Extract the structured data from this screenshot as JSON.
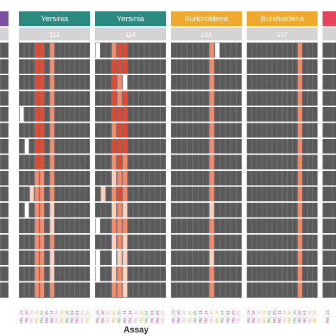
{
  "chart_data": {
    "type": "heatmap",
    "xlabel": "Assay",
    "colors": {
      "background": "#6e6e6e",
      "panel_bg": "#ffffff",
      "empty": "#5a5a5a",
      "id_strip": "#d4d4d4",
      "levels": [
        "#5a5a5a",
        "#ffffff",
        "#fcd0bf",
        "#f48a6a",
        "#e34a33"
      ],
      "tick_palette": [
        "#a04ec2",
        "#e0448c",
        "#f4a2c4",
        "#f0b73c",
        "#4caf50"
      ]
    },
    "row_count": 16,
    "panels": [
      {
        "organism": "",
        "id": "",
        "header_color": "#7b4fa0",
        "cols": [],
        "cells": []
      },
      {
        "organism": "Yersinia",
        "id": "113",
        "header_color": "#2a8a7f",
        "cols": [
          "PRC_23",
          "PRC_28",
          "PRC_20",
          "PRC_30",
          "PRC_02",
          "PRC_05",
          "PRC_11",
          "PRC_14",
          "PRC_18",
          "PRC_26",
          "PRC_04",
          "PRC_01",
          "PRC_09",
          "PRC_07"
        ],
        "cells": [
          [
            0,
            0,
            0,
            4,
            4,
            0,
            3,
            0,
            0,
            0,
            0,
            0,
            0,
            0
          ],
          [
            0,
            0,
            0,
            4,
            4,
            0,
            3,
            0,
            0,
            0,
            0,
            0,
            0,
            0
          ],
          [
            0,
            0,
            0,
            4,
            4,
            0,
            3,
            0,
            0,
            0,
            0,
            0,
            0,
            0
          ],
          [
            0,
            0,
            0,
            4,
            4,
            0,
            3,
            0,
            0,
            0,
            0,
            0,
            0,
            0
          ],
          [
            1,
            0,
            0,
            4,
            4,
            0,
            3,
            0,
            0,
            0,
            0,
            0,
            0,
            0
          ],
          [
            0,
            0,
            0,
            4,
            4,
            0,
            3,
            0,
            0,
            0,
            0,
            0,
            0,
            0
          ],
          [
            0,
            1,
            0,
            4,
            4,
            0,
            3,
            0,
            0,
            0,
            0,
            0,
            0,
            0
          ],
          [
            0,
            0,
            0,
            4,
            4,
            0,
            3,
            0,
            0,
            0,
            0,
            0,
            0,
            0
          ],
          [
            0,
            0,
            0,
            3,
            3,
            0,
            3,
            0,
            0,
            0,
            0,
            0,
            0,
            0
          ],
          [
            0,
            0,
            2,
            3,
            3,
            0,
            3,
            0,
            0,
            0,
            0,
            0,
            0,
            0
          ],
          [
            0,
            1,
            0,
            3,
            3,
            0,
            2,
            0,
            0,
            0,
            0,
            0,
            0,
            0
          ],
          [
            0,
            0,
            0,
            3,
            3,
            0,
            2,
            0,
            0,
            0,
            0,
            0,
            0,
            0
          ],
          [
            0,
            0,
            0,
            3,
            3,
            0,
            3,
            0,
            0,
            0,
            0,
            0,
            0,
            0
          ],
          [
            0,
            0,
            0,
            3,
            3,
            0,
            2,
            0,
            0,
            0,
            0,
            0,
            0,
            0
          ],
          [
            0,
            0,
            0,
            3,
            3,
            0,
            2,
            0,
            0,
            0,
            0,
            0,
            0,
            0
          ],
          [
            0,
            0,
            0,
            3,
            3,
            0,
            3,
            0,
            0,
            0,
            0,
            0,
            0,
            0
          ]
        ]
      },
      {
        "organism": "Yersinia",
        "id": "114",
        "header_color": "#2a8a7f",
        "cols": [
          "PRC_28",
          "PRC_20",
          "PRC_30",
          "PRC_02",
          "PRC_05",
          "PRC_11",
          "PRC_14",
          "PRC_18",
          "PRC_26",
          "PRC_04",
          "PRC_01",
          "PRC_09",
          "PRC_07"
        ],
        "cells": [
          [
            1,
            0,
            0,
            3,
            4,
            4,
            0,
            0,
            0,
            0,
            0,
            0,
            0
          ],
          [
            0,
            0,
            0,
            4,
            4,
            4,
            0,
            0,
            0,
            0,
            0,
            0,
            0
          ],
          [
            0,
            0,
            0,
            4,
            3,
            1,
            0,
            0,
            0,
            0,
            0,
            0,
            0
          ],
          [
            0,
            0,
            0,
            4,
            3,
            4,
            0,
            0,
            0,
            0,
            0,
            0,
            0
          ],
          [
            0,
            0,
            0,
            4,
            4,
            4,
            0,
            0,
            0,
            0,
            0,
            0,
            0
          ],
          [
            0,
            0,
            0,
            3,
            4,
            4,
            0,
            0,
            0,
            0,
            0,
            0,
            0
          ],
          [
            0,
            0,
            0,
            4,
            4,
            4,
            0,
            0,
            0,
            0,
            0,
            0,
            0
          ],
          [
            0,
            0,
            0,
            3,
            4,
            3,
            0,
            0,
            0,
            0,
            0,
            0,
            0
          ],
          [
            0,
            0,
            0,
            2,
            3,
            3,
            0,
            0,
            0,
            0,
            0,
            0,
            0
          ],
          [
            0,
            2,
            0,
            3,
            4,
            3,
            0,
            0,
            0,
            0,
            0,
            0,
            0
          ],
          [
            0,
            0,
            0,
            2,
            3,
            2,
            0,
            0,
            0,
            0,
            0,
            0,
            0
          ],
          [
            1,
            0,
            0,
            3,
            3,
            3,
            0,
            0,
            0,
            0,
            0,
            0,
            0
          ],
          [
            0,
            0,
            0,
            2,
            3,
            2,
            0,
            0,
            0,
            0,
            0,
            0,
            0
          ],
          [
            1,
            0,
            0,
            1,
            2,
            2,
            0,
            0,
            0,
            0,
            0,
            0,
            0
          ],
          [
            1,
            0,
            0,
            2,
            3,
            2,
            0,
            0,
            0,
            0,
            0,
            0,
            0
          ],
          [
            0,
            0,
            0,
            3,
            3,
            2,
            0,
            0,
            0,
            0,
            0,
            0,
            0
          ]
        ]
      },
      {
        "organism": "Burkholderia",
        "id": "164",
        "header_color": "#f0a92c",
        "cols": [
          "PRC_23",
          "PRC_20",
          "PRC_30",
          "PRC_02",
          "PRC_05",
          "PRC_11",
          "PRC_14",
          "PRC_18",
          "PRC_26",
          "PRC_04",
          "PRC_01",
          "PRC_09",
          "PRC_07"
        ],
        "cells": [
          [
            0,
            0,
            0,
            0,
            0,
            0,
            0,
            3,
            1,
            0,
            0,
            0,
            0
          ],
          [
            0,
            0,
            0,
            0,
            0,
            0,
            0,
            3,
            0,
            0,
            0,
            0,
            0
          ],
          [
            0,
            0,
            0,
            0,
            0,
            0,
            0,
            3,
            0,
            0,
            0,
            0,
            0
          ],
          [
            0,
            0,
            0,
            0,
            0,
            0,
            0,
            3,
            0,
            0,
            0,
            0,
            0
          ],
          [
            0,
            0,
            0,
            0,
            0,
            0,
            0,
            3,
            0,
            0,
            0,
            0,
            0
          ],
          [
            0,
            0,
            0,
            0,
            0,
            0,
            0,
            3,
            0,
            0,
            0,
            0,
            0
          ],
          [
            0,
            0,
            0,
            0,
            0,
            0,
            0,
            3,
            0,
            0,
            0,
            0,
            0
          ],
          [
            0,
            0,
            0,
            0,
            0,
            0,
            0,
            3,
            0,
            0,
            0,
            0,
            0
          ],
          [
            0,
            0,
            0,
            0,
            0,
            0,
            0,
            3,
            0,
            0,
            0,
            0,
            0
          ],
          [
            0,
            0,
            0,
            0,
            0,
            0,
            0,
            3,
            0,
            0,
            0,
            0,
            0
          ],
          [
            0,
            0,
            0,
            0,
            0,
            0,
            0,
            2,
            0,
            0,
            0,
            0,
            0
          ],
          [
            0,
            0,
            0,
            0,
            0,
            0,
            0,
            3,
            0,
            0,
            0,
            0,
            0
          ],
          [
            0,
            0,
            0,
            0,
            0,
            0,
            0,
            3,
            0,
            0,
            0,
            0,
            0
          ],
          [
            0,
            0,
            0,
            0,
            0,
            0,
            0,
            2,
            0,
            0,
            0,
            0,
            0
          ],
          [
            0,
            0,
            0,
            0,
            0,
            0,
            0,
            3,
            0,
            0,
            0,
            0,
            0
          ],
          [
            0,
            0,
            0,
            0,
            0,
            0,
            0,
            3,
            0,
            0,
            0,
            0,
            0
          ]
        ]
      },
      {
        "organism": "Burkholderia",
        "id": "197",
        "header_color": "#f0a92c",
        "cols": [
          "PRC_23",
          "PRC_28",
          "PRC_20",
          "PRC_30",
          "PRC_02",
          "PRC_05",
          "PRC_11",
          "PRC_14",
          "PRC_18",
          "PRC_26",
          "PRC_04",
          "PRC_01",
          "PRC_09",
          "PRC_07"
        ],
        "cells": [
          [
            0,
            0,
            0,
            0,
            0,
            0,
            0,
            0,
            0,
            0,
            3,
            0,
            0,
            0
          ],
          [
            0,
            0,
            0,
            0,
            0,
            0,
            0,
            0,
            0,
            0,
            3,
            0,
            0,
            0
          ],
          [
            0,
            0,
            0,
            0,
            0,
            0,
            0,
            0,
            0,
            0,
            3,
            0,
            0,
            0
          ],
          [
            0,
            0,
            0,
            0,
            0,
            0,
            0,
            0,
            0,
            0,
            3,
            0,
            0,
            0
          ],
          [
            0,
            0,
            0,
            0,
            0,
            0,
            0,
            0,
            0,
            0,
            3,
            0,
            0,
            0
          ],
          [
            0,
            0,
            0,
            0,
            0,
            0,
            0,
            0,
            0,
            0,
            3,
            0,
            0,
            0
          ],
          [
            0,
            0,
            0,
            0,
            0,
            0,
            0,
            0,
            0,
            0,
            3,
            0,
            0,
            0
          ],
          [
            0,
            0,
            0,
            0,
            0,
            0,
            0,
            0,
            0,
            0,
            3,
            0,
            0,
            0
          ],
          [
            0,
            0,
            0,
            0,
            0,
            0,
            0,
            0,
            0,
            0,
            3,
            0,
            0,
            0
          ],
          [
            0,
            0,
            0,
            0,
            0,
            0,
            0,
            0,
            0,
            0,
            3,
            0,
            0,
            0
          ],
          [
            0,
            0,
            0,
            0,
            0,
            0,
            0,
            0,
            0,
            0,
            3,
            0,
            0,
            0
          ],
          [
            0,
            0,
            0,
            0,
            0,
            0,
            0,
            0,
            0,
            0,
            3,
            0,
            0,
            0
          ],
          [
            0,
            0,
            0,
            0,
            0,
            0,
            0,
            0,
            0,
            0,
            3,
            0,
            0,
            0
          ],
          [
            0,
            0,
            0,
            0,
            0,
            0,
            0,
            0,
            0,
            0,
            3,
            0,
            0,
            0
          ],
          [
            0,
            0,
            0,
            0,
            0,
            0,
            0,
            0,
            0,
            0,
            3,
            0,
            0,
            0
          ],
          [
            0,
            0,
            0,
            0,
            0,
            0,
            0,
            0,
            0,
            0,
            3,
            0,
            0,
            0
          ]
        ]
      },
      {
        "organism": "",
        "id": "",
        "header_color": "#e8425a",
        "cols": [
          "PRC_23",
          "PRC_28"
        ],
        "cells": []
      }
    ]
  }
}
